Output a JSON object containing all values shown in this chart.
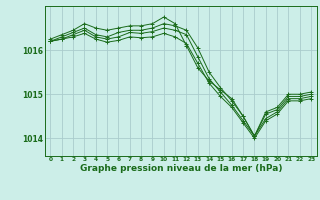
{
  "background_color": "#cceee8",
  "grid_color": "#aacccc",
  "line_color": "#1a6b1a",
  "title": "Graphe pression niveau de la mer (hPa)",
  "title_fontsize": 6.5,
  "xlim": [
    -0.5,
    23.5
  ],
  "ylim": [
    1013.6,
    1017.0
  ],
  "yticks": [
    1014,
    1015,
    1016
  ],
  "xticks": [
    0,
    1,
    2,
    3,
    4,
    5,
    6,
    7,
    8,
    9,
    10,
    11,
    12,
    13,
    14,
    15,
    16,
    17,
    18,
    19,
    20,
    21,
    22,
    23
  ],
  "line1": [
    1016.25,
    1016.35,
    1016.45,
    1016.6,
    1016.5,
    1016.45,
    1016.5,
    1016.55,
    1016.55,
    1016.6,
    1016.75,
    1016.6,
    1016.1,
    1015.6,
    1015.3,
    1015.1,
    1014.9,
    1014.5,
    1014.05,
    1014.6,
    1014.7,
    1015.0,
    1015.0,
    1015.05
  ],
  "line2": [
    1016.2,
    1016.3,
    1016.4,
    1016.5,
    1016.35,
    1016.3,
    1016.4,
    1016.45,
    1016.45,
    1016.5,
    1016.6,
    1016.55,
    1016.45,
    1016.05,
    1015.5,
    1015.15,
    1014.85,
    1014.5,
    1014.05,
    1014.55,
    1014.65,
    1014.95,
    1014.95,
    1015.0
  ],
  "line3": [
    1016.2,
    1016.25,
    1016.35,
    1016.45,
    1016.3,
    1016.25,
    1016.3,
    1016.4,
    1016.38,
    1016.42,
    1016.5,
    1016.45,
    1016.35,
    1015.85,
    1015.35,
    1015.05,
    1014.75,
    1014.4,
    1014.05,
    1014.45,
    1014.6,
    1014.9,
    1014.9,
    1014.95
  ],
  "line4": [
    1016.2,
    1016.25,
    1016.3,
    1016.38,
    1016.25,
    1016.18,
    1016.22,
    1016.3,
    1016.28,
    1016.3,
    1016.38,
    1016.3,
    1016.15,
    1015.7,
    1015.25,
    1014.95,
    1014.7,
    1014.35,
    1014.0,
    1014.4,
    1014.55,
    1014.85,
    1014.85,
    1014.9
  ]
}
